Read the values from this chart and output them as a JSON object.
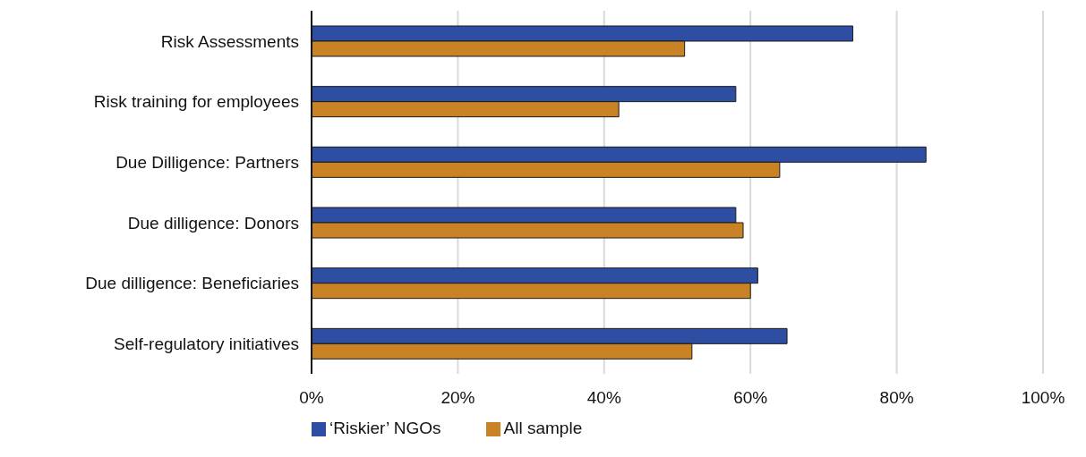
{
  "chart_data": {
    "type": "bar",
    "orientation": "horizontal",
    "categories": [
      "Risk Assessments",
      "Risk training for employees",
      "Due Dilligence: Partners",
      "Due dilligence: Donors",
      "Due dilligence: Beneficiaries",
      "Self-regulatory initiatives"
    ],
    "series": [
      {
        "name": "‘Riskier’ NGOs",
        "color": "#2e4ea3",
        "values": [
          74,
          58,
          84,
          58,
          61,
          65
        ]
      },
      {
        "name": "All sample",
        "color": "#c98325",
        "values": [
          51,
          42,
          64,
          59,
          60,
          52
        ]
      }
    ],
    "xlim": [
      0,
      100
    ],
    "xticks": [
      {
        "value": 0,
        "label": "0%"
      },
      {
        "value": 20,
        "label": "20%"
      },
      {
        "value": 40,
        "label": "40%"
      },
      {
        "value": 60,
        "label": "60%"
      },
      {
        "value": 80,
        "label": "80%"
      },
      {
        "value": 100,
        "label": "100%"
      }
    ],
    "grid": "x",
    "legend": "bottom left"
  }
}
